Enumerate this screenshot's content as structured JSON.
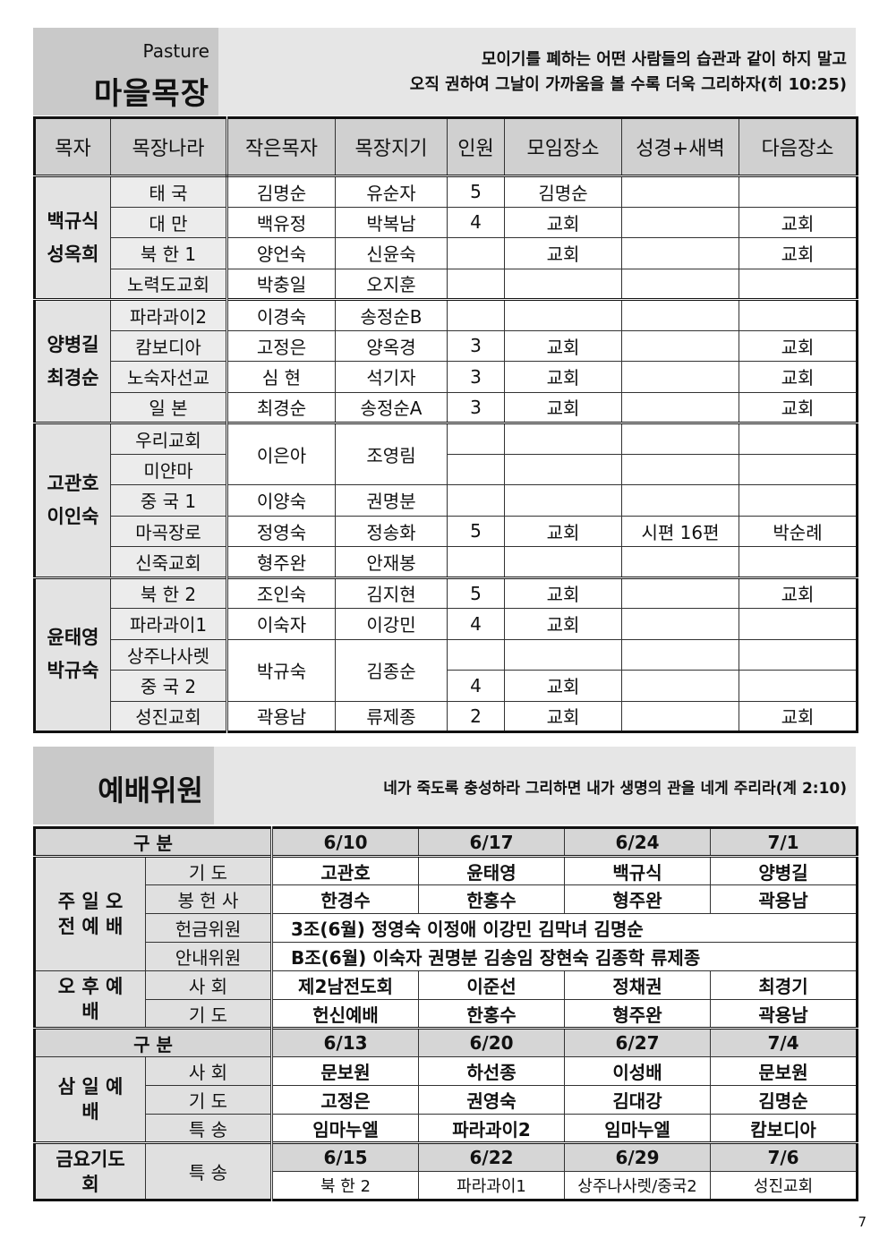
{
  "pasture": {
    "label_en": "Pasture",
    "title": "마을목장",
    "verse_line1": "모이기를 폐하는 어떤 사람들의 습관과 같이 하지 말고",
    "verse_line2": "오직 권하여 그날이 가까움을 볼 수록 더욱 그리하자(히 10:25)",
    "headers": [
      "목자",
      "목장나라",
      "작은목자",
      "목장지기",
      "인원",
      "모임장소",
      "성경+새벽",
      "다음장소"
    ],
    "groups": [
      {
        "leaders": "백규식 성옥희",
        "rows": [
          {
            "nation": "태  국",
            "small_pastor": "김명순",
            "keeper": "유순자",
            "count": "5",
            "place": "김명순",
            "bible": "",
            "next": ""
          },
          {
            "nation": "대  만",
            "small_pastor": "백유정",
            "keeper": "박복남",
            "count": "4",
            "place": "교회",
            "bible": "",
            "next": "교회"
          },
          {
            "nation": "북 한 1",
            "small_pastor": "양언숙",
            "keeper": "신윤숙",
            "count": "",
            "place": "교회",
            "bible": "",
            "next": "교회"
          },
          {
            "nation": "노력도교회",
            "small_pastor": "박충일",
            "keeper": "오지훈",
            "count": "",
            "place": "",
            "bible": "",
            "next": ""
          }
        ]
      },
      {
        "leaders": "양병길 최경순",
        "rows": [
          {
            "nation": "파라과이2",
            "small_pastor": "이경숙",
            "keeper": "송정순B",
            "count": "",
            "place": "",
            "bible": "",
            "next": ""
          },
          {
            "nation": "캄보디아",
            "small_pastor": "고정은",
            "keeper": "양옥경",
            "count": "3",
            "place": "교회",
            "bible": "",
            "next": "교회"
          },
          {
            "nation": "노숙자선교",
            "small_pastor": "심  현",
            "keeper": "석기자",
            "count": "3",
            "place": "교회",
            "bible": "",
            "next": "교회"
          },
          {
            "nation": "일  본",
            "small_pastor": "최경순",
            "keeper": "송정순A",
            "count": "3",
            "place": "교회",
            "bible": "",
            "next": "교회"
          }
        ]
      },
      {
        "leaders": "고관호 이인숙",
        "rows": [
          {
            "nation": "우리교회",
            "small_pastor": "이은아",
            "keeper": "조영림",
            "count": "",
            "place": "",
            "bible": "",
            "next": ""
          },
          {
            "nation": "미얀마",
            "count": "",
            "place": "",
            "bible": "",
            "next": ""
          },
          {
            "nation": "중 국 1",
            "small_pastor": "이양숙",
            "keeper": "권명분",
            "count": "",
            "place": "",
            "bible": "",
            "next": ""
          },
          {
            "nation": "마곡장로",
            "small_pastor": "정영숙",
            "keeper": "정송화",
            "count": "5",
            "place": "교회",
            "bible": "시편 16편",
            "next": "박순례"
          },
          {
            "nation": "신죽교회",
            "small_pastor": "형주완",
            "keeper": "안재봉",
            "count": "",
            "place": "",
            "bible": "",
            "next": ""
          }
        ]
      },
      {
        "leaders": "윤태영 박규숙",
        "rows": [
          {
            "nation": "북 한 2",
            "small_pastor": "조인숙",
            "keeper": "김지현",
            "count": "5",
            "place": "교회",
            "bible": "",
            "next": "교회"
          },
          {
            "nation": "파라과이1",
            "small_pastor": "이숙자",
            "keeper": "이강민",
            "count": "4",
            "place": "교회",
            "bible": "",
            "next": ""
          },
          {
            "nation": "상주나사렛",
            "small_pastor": "박규숙",
            "keeper": "김종순",
            "count": "",
            "place": "",
            "bible": "",
            "next": ""
          },
          {
            "nation": "중 국 2",
            "count": "4",
            "place": "교회",
            "bible": "",
            "next": ""
          },
          {
            "nation": "성진교회",
            "small_pastor": "곽용남",
            "keeper": "류제종",
            "count": "2",
            "place": "교회",
            "bible": "",
            "next": "교회"
          }
        ]
      }
    ]
  },
  "worship": {
    "title": "예배위원",
    "verse": "네가 죽도록 충성하라 그리하면 내가 생명의 관을 네게 주리라(계 2:10)",
    "gubun": "구    분",
    "sunday": {
      "dates": [
        "6/10",
        "6/17",
        "6/24",
        "7/1"
      ],
      "label": "주 일 오 전 예 배",
      "prayer_label": "기      도",
      "prayer": [
        "고관호",
        "윤태영",
        "백규식",
        "양병길"
      ],
      "offering_label": "봉 헌 사",
      "offering": [
        "한경수",
        "한홍수",
        "형주완",
        "곽용남"
      ],
      "collection_label": "헌금위원",
      "collection": "3조(6월) 정영숙 이정애 이강민 김막녀 김명순",
      "usher_label": "안내위원",
      "usher": "B조(6월) 이숙자 권명분 김송임 장현숙 김종학 류제종"
    },
    "afternoon": {
      "label": "오 후 예 배",
      "host_label": "사      회",
      "host": [
        "제2남전도회",
        "이준선",
        "정채권",
        "최경기"
      ],
      "prayer_label": "기      도",
      "prayer": [
        "헌신예배",
        "한홍수",
        "형주완",
        "곽용남"
      ]
    },
    "wednesday": {
      "dates": [
        "6/13",
        "6/20",
        "6/27",
        "7/4"
      ],
      "label": "삼 일 예 배",
      "host_label": "사      회",
      "host": [
        "문보원",
        "하선종",
        "이성배",
        "문보원"
      ],
      "prayer_label": "기      도",
      "prayer": [
        "고정은",
        "권영숙",
        "김대강",
        "김명순"
      ],
      "song_label": "특      송",
      "song": [
        "임마누엘",
        "파라과이2",
        "임마누엘",
        "캄보디아"
      ]
    },
    "friday": {
      "label": "금요기도회",
      "song_label": "특      송",
      "dates": [
        "6/15",
        "6/22",
        "6/29",
        "7/6"
      ],
      "song": [
        "북 한 2",
        "파라과이1",
        "상주나사렛/중국2",
        "성진교회"
      ]
    }
  },
  "page_number": "7"
}
